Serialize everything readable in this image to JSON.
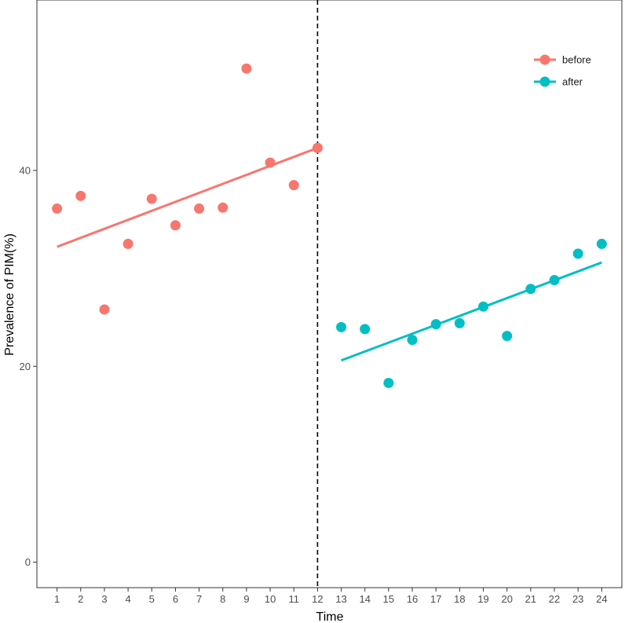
{
  "chart_data": {
    "type": "scatter",
    "xlabel": "Time",
    "ylabel": "Prevalence of PIM(%)",
    "x_ticks": [
      1,
      2,
      3,
      4,
      5,
      6,
      7,
      8,
      9,
      10,
      11,
      12,
      13,
      14,
      15,
      16,
      17,
      18,
      19,
      20,
      21,
      22,
      23,
      24
    ],
    "y_ticks": [
      0,
      20,
      40
    ],
    "xlim": [
      0.15,
      24.85
    ],
    "ylim": [
      -2.6,
      57.4
    ],
    "grid": false,
    "legend_position": "top-right",
    "intervention_line": {
      "x": 12,
      "style": "dashed",
      "color": "#000000"
    },
    "series": [
      {
        "name": "before",
        "color": "#F8766D",
        "x": [
          1,
          2,
          3,
          4,
          5,
          6,
          7,
          8,
          9,
          10,
          11,
          12
        ],
        "y": [
          36.1,
          37.4,
          25.8,
          32.5,
          37.1,
          34.4,
          36.1,
          36.2,
          50.4,
          40.8,
          38.5,
          42.3
        ],
        "trend": {
          "x": [
            1,
            12
          ],
          "y": [
            32.2,
            42.3
          ]
        }
      },
      {
        "name": "after",
        "color": "#00BFC4",
        "x": [
          13,
          14,
          15,
          16,
          17,
          18,
          19,
          20,
          21,
          22,
          23,
          24
        ],
        "y": [
          24.0,
          23.8,
          18.3,
          22.7,
          24.3,
          24.4,
          26.1,
          23.1,
          27.9,
          28.8,
          31.5,
          32.5
        ],
        "trend": {
          "x": [
            13,
            24
          ],
          "y": [
            20.6,
            30.6
          ]
        }
      }
    ]
  }
}
